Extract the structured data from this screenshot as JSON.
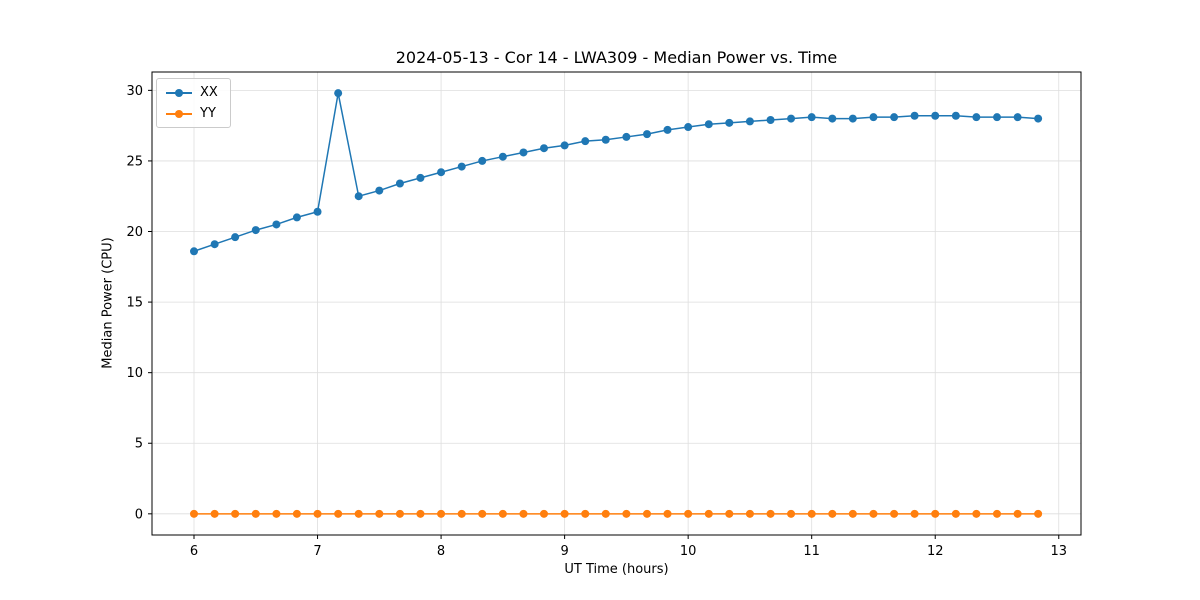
{
  "chart_data": {
    "type": "line",
    "title": "2024-05-13 - Cor 14 - LWA309 - Median Power vs. Time",
    "xlabel": "UT Time (hours)",
    "ylabel": "Median Power (CPU)",
    "xlim": [
      5.66,
      13.18
    ],
    "ylim": [
      -1.5,
      31.3
    ],
    "xticks": [
      6,
      7,
      8,
      9,
      10,
      11,
      12,
      13
    ],
    "yticks": [
      0,
      5,
      10,
      15,
      20,
      25,
      30
    ],
    "grid": true,
    "legend_position": "upper left",
    "x": [
      6,
      6.167,
      6.333,
      6.5,
      6.667,
      6.833,
      7,
      7.167,
      7.333,
      7.5,
      7.667,
      7.833,
      8,
      8.167,
      8.333,
      8.5,
      8.667,
      8.833,
      9,
      9.167,
      9.333,
      9.5,
      9.667,
      9.833,
      10,
      10.167,
      10.333,
      10.5,
      10.667,
      10.833,
      11,
      11.167,
      11.333,
      11.5,
      11.667,
      11.833,
      12,
      12.167,
      12.333,
      12.5,
      12.667,
      12.833
    ],
    "series": [
      {
        "name": "XX",
        "color": "#1f77b4",
        "values": [
          18.6,
          19.1,
          19.6,
          20.1,
          20.5,
          21.0,
          21.4,
          29.8,
          22.5,
          22.9,
          23.4,
          23.8,
          24.2,
          24.6,
          25.0,
          25.3,
          25.6,
          25.9,
          26.1,
          26.4,
          26.5,
          26.7,
          26.9,
          27.2,
          27.4,
          27.6,
          27.7,
          27.8,
          27.9,
          28.0,
          28.1,
          28.0,
          28.0,
          28.1,
          28.1,
          28.2,
          28.2,
          28.2,
          28.1,
          28.1,
          28.1,
          28.0
        ]
      },
      {
        "name": "YY",
        "color": "#ff7f0e",
        "values": [
          0,
          0,
          0,
          0,
          0,
          0,
          0,
          0,
          0,
          0,
          0,
          0,
          0,
          0,
          0,
          0,
          0,
          0,
          0,
          0,
          0,
          0,
          0,
          0,
          0,
          0,
          0,
          0,
          0,
          0,
          0,
          0,
          0,
          0,
          0,
          0,
          0,
          0,
          0,
          0,
          0,
          0
        ]
      }
    ]
  }
}
